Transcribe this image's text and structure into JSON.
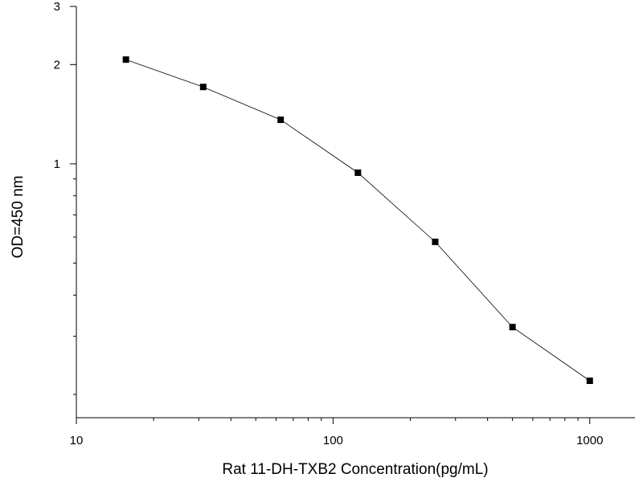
{
  "chart_data": {
    "type": "line",
    "title": "",
    "xlabel": "Rat 11-DH-TXB2  Concentration(pg/mL)",
    "ylabel": "OD=450 nm",
    "xscale": "log",
    "yscale": "log",
    "xlim": [
      10,
      1500
    ],
    "ylim": [
      0.17,
      3
    ],
    "grid": false,
    "legend": "none",
    "marker": "square",
    "line_color": "#000000",
    "x_ticks": [
      {
        "value": 10,
        "label": "10"
      },
      {
        "value": 100,
        "label": "100"
      },
      {
        "value": 1000,
        "label": "1000"
      }
    ],
    "y_ticks": [
      {
        "value": 1,
        "label": "1"
      },
      {
        "value": 2,
        "label": "2"
      },
      {
        "value": 3,
        "label": "3"
      }
    ],
    "series": [
      {
        "x": [
          15.6,
          31.2,
          62.5,
          125,
          250,
          500,
          1000
        ],
        "y": [
          2.07,
          1.71,
          1.36,
          0.94,
          0.58,
          0.32,
          0.22
        ]
      }
    ]
  }
}
